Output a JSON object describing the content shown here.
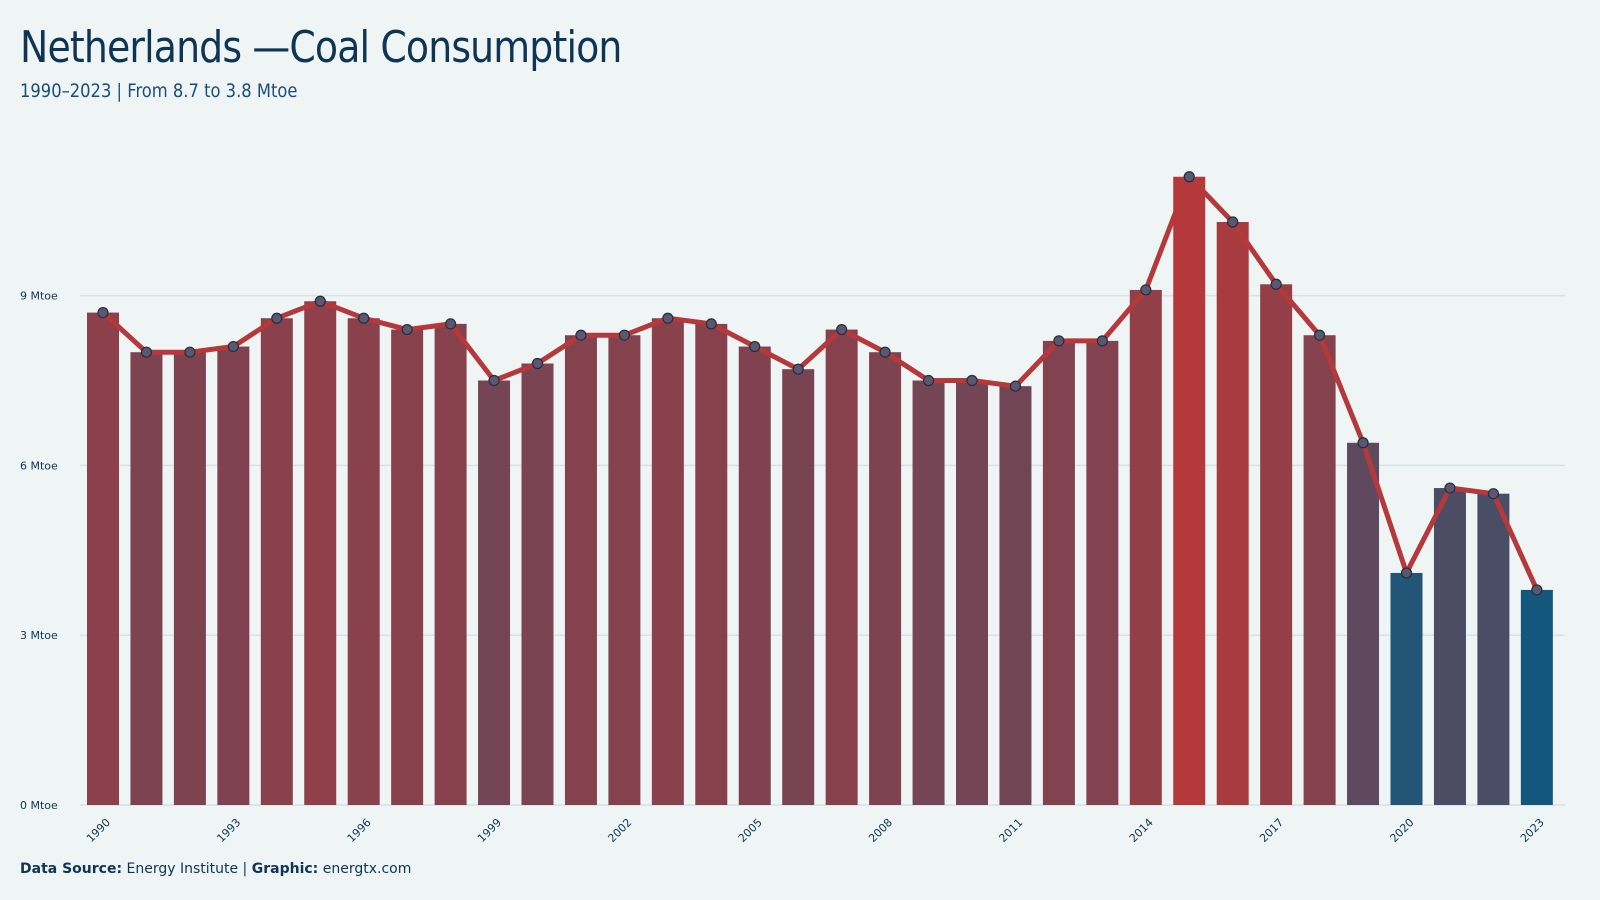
{
  "header": {
    "title": "Netherlands —Coal Consumption",
    "subtitle": "1990–2023 | From 8.7 to 3.8 Mtoe"
  },
  "footer": {
    "source_label": "Data Source:",
    "source_value": "Energy Institute |",
    "graphic_label": "Graphic:",
    "graphic_value": "energtx.com"
  },
  "colors": {
    "background": "#eff5f5",
    "high": "#b5383a",
    "low": "#13587c",
    "line": "#b5383a",
    "point_fill": "#5d5670",
    "point_stroke": "#203040",
    "grid": "#d6e2e6",
    "text": "#0e3553"
  },
  "chart_data": {
    "type": "bar",
    "title": "Netherlands —Coal Consumption",
    "subtitle": "1990–2023 | From 8.7 to 3.8 Mtoe",
    "xlabel": "",
    "ylabel": "",
    "unit": "Mtoe",
    "ylim": [
      0,
      12
    ],
    "yticks": [
      0,
      3,
      6,
      9
    ],
    "ytick_labels": [
      "0 Mtoe",
      "3 Mtoe",
      "6 Mtoe",
      "9 Mtoe"
    ],
    "xtick_labels": [
      "1990",
      "1993",
      "1996",
      "1999",
      "2002",
      "2005",
      "2008",
      "2011",
      "2014",
      "2017",
      "2020",
      "2023"
    ],
    "grid": true,
    "legend": false,
    "categories": [
      "1990",
      "1991",
      "1992",
      "1993",
      "1994",
      "1995",
      "1996",
      "1997",
      "1998",
      "1999",
      "2000",
      "2001",
      "2002",
      "2003",
      "2004",
      "2005",
      "2006",
      "2007",
      "2008",
      "2009",
      "2010",
      "2011",
      "2012",
      "2013",
      "2014",
      "2015",
      "2016",
      "2017",
      "2018",
      "2019",
      "2020",
      "2021",
      "2022",
      "2023"
    ],
    "series": [
      {
        "type": "bar+line",
        "values": [
          8.7,
          8.0,
          8.0,
          8.1,
          8.6,
          8.9,
          8.6,
          8.4,
          8.5,
          7.5,
          7.8,
          8.3,
          8.3,
          8.6,
          8.5,
          8.1,
          7.7,
          8.4,
          8.0,
          7.5,
          7.5,
          7.4,
          8.2,
          8.2,
          9.1,
          11.1,
          10.3,
          9.2,
          8.3,
          6.4,
          4.1,
          5.6,
          5.5,
          3.8
        ]
      }
    ]
  }
}
